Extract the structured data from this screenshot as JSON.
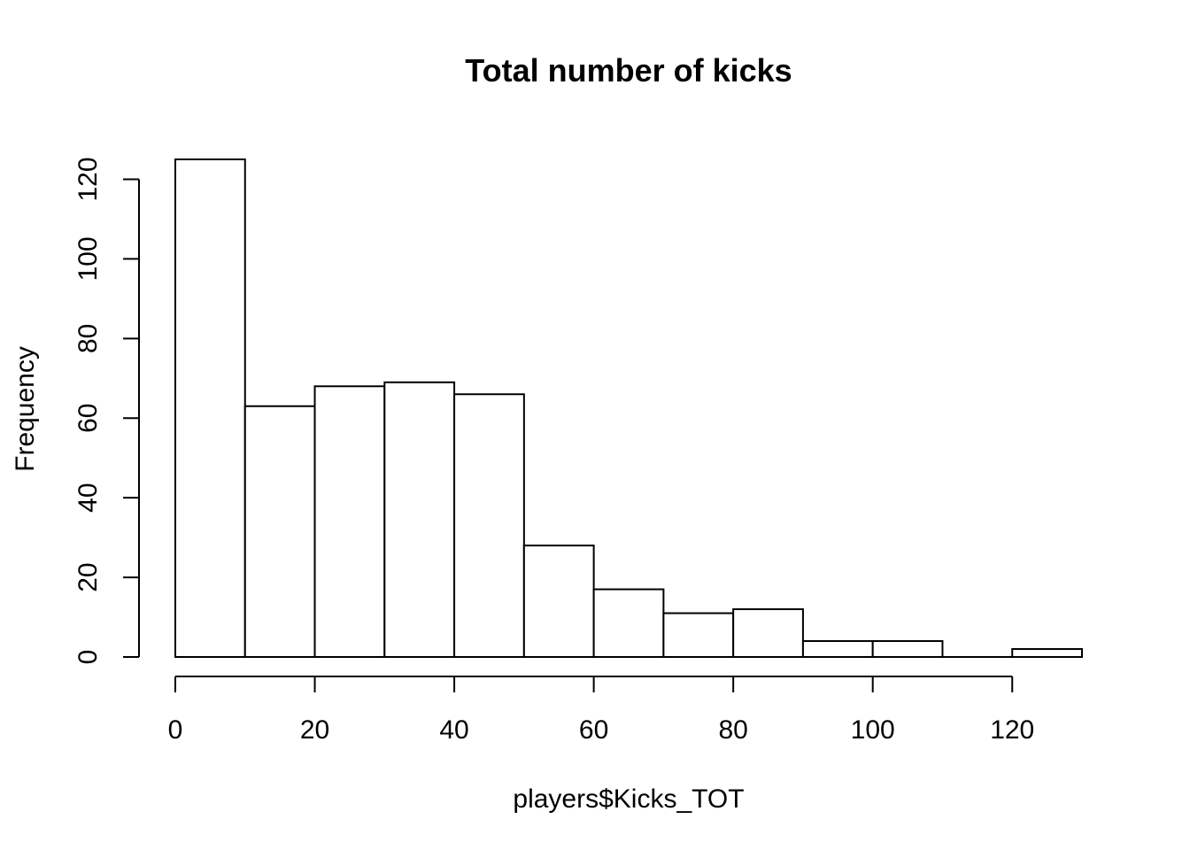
{
  "chart_data": {
    "type": "bar",
    "title": "Total number of kicks",
    "xlabel": "players$Kicks_TOT",
    "ylabel": "Frequency",
    "bin_edges": [
      0,
      10,
      20,
      30,
      40,
      50,
      60,
      70,
      80,
      90,
      100,
      110,
      120,
      130
    ],
    "values": [
      125,
      63,
      68,
      69,
      66,
      28,
      17,
      11,
      12,
      4,
      4,
      0,
      2
    ],
    "x_ticks": [
      0,
      20,
      40,
      60,
      80,
      100,
      120
    ],
    "x_tick_labels": [
      "0",
      "20",
      "40",
      "60",
      "80",
      "100",
      "120"
    ],
    "y_ticks": [
      0,
      20,
      40,
      60,
      80,
      100,
      120
    ],
    "y_tick_labels": [
      "0",
      "20",
      "40",
      "60",
      "80",
      "100",
      "120"
    ],
    "xlim": [
      0,
      130
    ],
    "ylim": [
      0,
      125
    ],
    "grid": false,
    "legend": "none",
    "colors": {
      "bar_fill": "#ffffff",
      "bar_stroke": "#000000"
    }
  }
}
